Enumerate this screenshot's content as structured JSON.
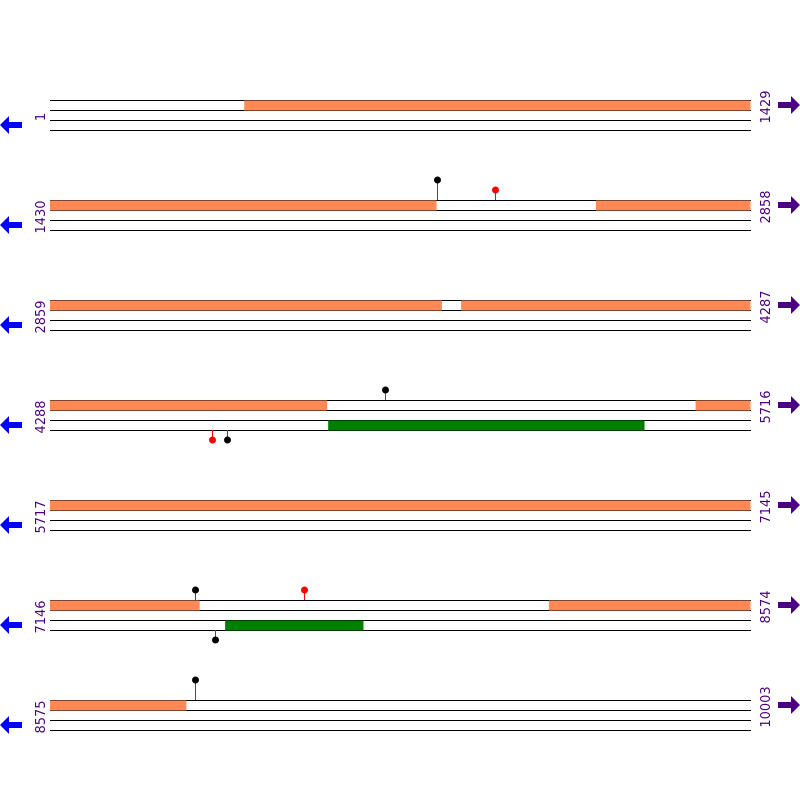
{
  "colors": {
    "orf": "#ff8855",
    "feature": "#008000",
    "line": "#000000",
    "stem": "#ff0000",
    "pin_black": "#000000",
    "pin_red": "#ff0000",
    "arrow_reverse": "#0000ff",
    "arrow_forward": "#4b0082",
    "label": "#4b0082"
  },
  "icons": {
    "left": "arrow-left-icon",
    "right": "arrow-right-icon"
  },
  "rows": [
    {
      "start": 1,
      "end": 1429,
      "start_label": "1",
      "end_label": "1429",
      "orf_top": [
        [
          397,
          1429
        ]
      ],
      "orf_bottom": [],
      "pins_top": [],
      "pins_bottom": []
    },
    {
      "start": 1430,
      "end": 2858,
      "start_label": "1430",
      "end_label": "2858",
      "orf_top": [
        [
          1430,
          2218
        ],
        [
          2543,
          2858
        ]
      ],
      "orf_bottom": [],
      "pins_top": [
        {
          "pos": 2218,
          "color": "black",
          "height": 20
        },
        {
          "pos": 2338,
          "color": "red",
          "height": 10
        }
      ],
      "pins_bottom": []
    },
    {
      "start": 2859,
      "end": 4287,
      "start_label": "2859",
      "end_label": "4287",
      "orf_top": [
        [
          2859,
          3658
        ],
        [
          3697,
          4287
        ]
      ],
      "orf_bottom": [],
      "pins_top": [],
      "pins_bottom": []
    },
    {
      "start": 4288,
      "end": 5716,
      "start_label": "4288",
      "end_label": "5716",
      "orf_top": [
        [
          4288,
          4853
        ],
        [
          5604,
          5716
        ]
      ],
      "orf_bottom": [
        [
          4855,
          5500
        ]
      ],
      "pins_top": [
        {
          "pos": 4970,
          "color": "black",
          "height": 10
        }
      ],
      "pins_bottom": [
        {
          "pos": 4619,
          "color": "red",
          "height": 10
        },
        {
          "pos": 4648,
          "color": "black",
          "height": 10
        }
      ]
    },
    {
      "start": 5717,
      "end": 7145,
      "start_label": "5717",
      "end_label": "7145",
      "orf_top": [
        [
          5717,
          7145
        ]
      ],
      "orf_bottom": [],
      "pins_top": [],
      "pins_bottom": []
    },
    {
      "start": 7146,
      "end": 8574,
      "start_label": "7146",
      "end_label": "8574",
      "orf_top": [
        [
          7146,
          7451
        ],
        [
          8163,
          8574
        ]
      ],
      "orf_bottom": [
        [
          7503,
          7785
        ]
      ],
      "pins_top": [
        {
          "pos": 7441,
          "color": "black",
          "height": 10
        },
        {
          "pos": 7664,
          "color": "red",
          "height": 10
        }
      ],
      "pins_bottom": [
        {
          "pos": 7482,
          "color": "black",
          "height": 10
        }
      ]
    },
    {
      "start": 8575,
      "end": 10003,
      "start_label": "8575",
      "end_label": "10003",
      "orf_top": [
        [
          8575,
          8853
        ]
      ],
      "orf_bottom": [],
      "pins_top": [
        {
          "pos": 8870,
          "color": "black",
          "height": 20
        }
      ],
      "pins_bottom": []
    }
  ]
}
